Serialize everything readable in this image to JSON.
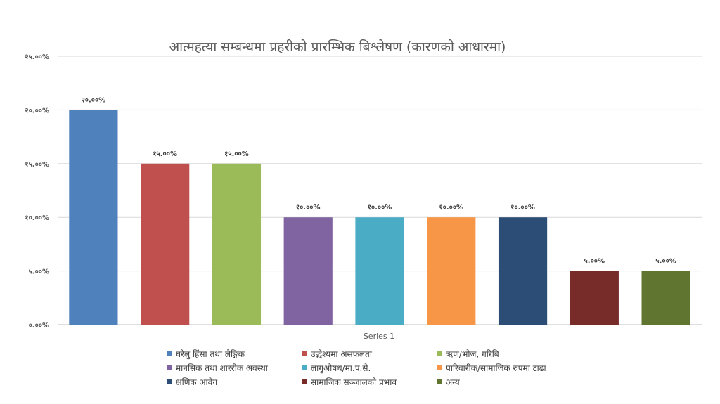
{
  "chart_data": {
    "type": "bar",
    "title": "आत्महत्या सम्बन्धमा प्रहरीको प्रारम्भिक बिश्लेषण (कारणको आधारमा)",
    "xlabel": "Series 1",
    "ylabel": "",
    "ylim": [
      0,
      25
    ],
    "grid": true,
    "legend_position": "bottom",
    "yticks": [
      {
        "value": 0,
        "label": "०.००%"
      },
      {
        "value": 5,
        "label": "५.००%"
      },
      {
        "value": 10,
        "label": "१०.००%"
      },
      {
        "value": 15,
        "label": "१५.००%"
      },
      {
        "value": 20,
        "label": "२०.००%"
      },
      {
        "value": 25,
        "label": "२५.००%"
      }
    ],
    "categories": [
      "घरेलु हिंसा तथा लैङ्गिक",
      "उद्धेश्यमा असफलता",
      "ऋण/भोज, गरिबि",
      "मानसिक तथा शाररीक अवस्था",
      "लागुऔषध/मा.प.से.",
      "पारिवारीक/सामाजिक रुपमा टाढा",
      "क्षणिक आवेग",
      "सामाजिक सञ्जालको प्रभाव",
      "अन्य"
    ],
    "values": [
      20,
      15,
      15,
      10,
      10,
      10,
      10,
      5,
      5
    ],
    "value_labels": [
      "२०.००%",
      "१५.००%",
      "१५.००%",
      "१०.००%",
      "१०.००%",
      "१०.००%",
      "१०.००%",
      "५.००%",
      "५.००%"
    ],
    "colors": [
      "#4F81BD",
      "#C0504D",
      "#9BBB59",
      "#8064A2",
      "#4BACC6",
      "#F79646",
      "#2C4D75",
      "#772C2A",
      "#5F7530"
    ]
  }
}
